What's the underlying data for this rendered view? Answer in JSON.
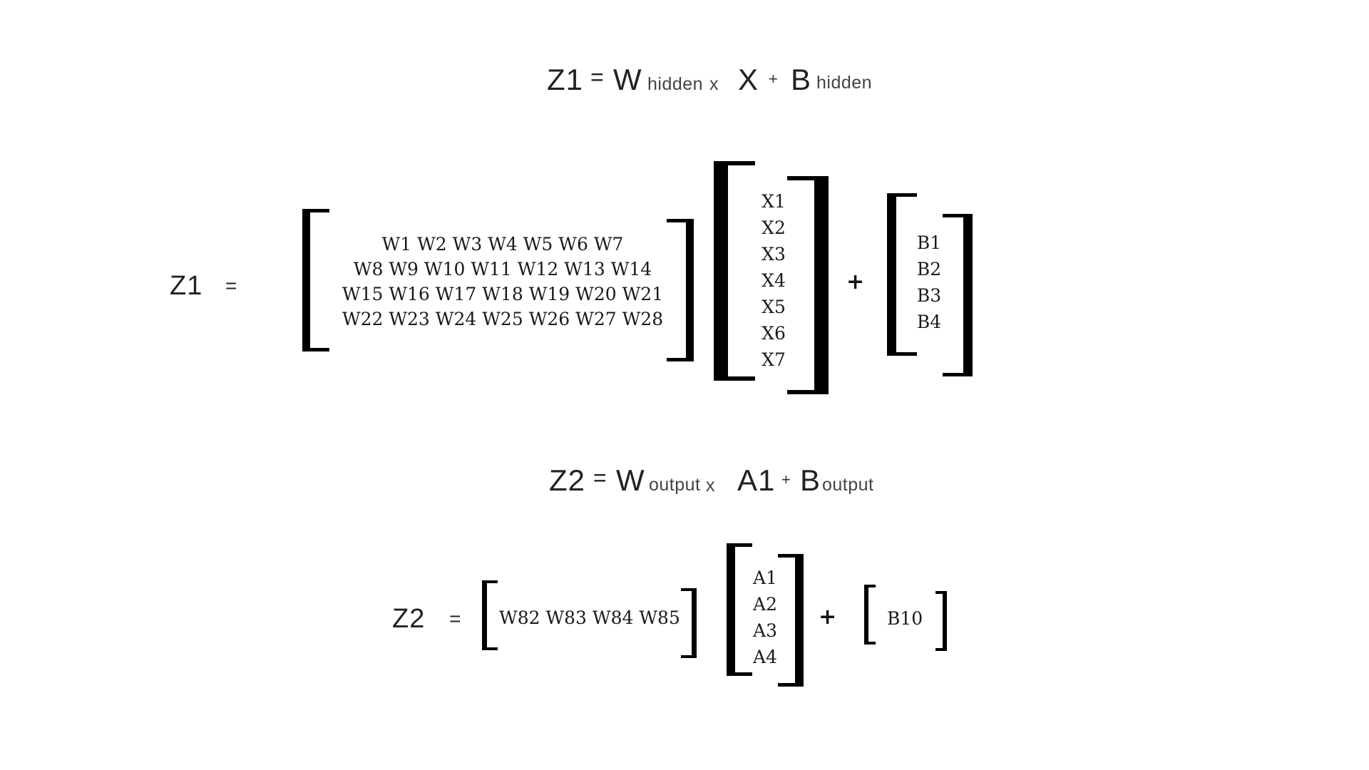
{
  "eq1_title": {
    "z": "Z1",
    "equals": "=",
    "w": "W",
    "w_sub": "hidden",
    "times": "x",
    "x": "X",
    "plus": "+",
    "b": "B",
    "b_sub": "hidden"
  },
  "eq1": {
    "lhs": "Z1",
    "equals": "=",
    "weights": [
      "W1 W2 W3 W4 W5 W6 W7",
      "W8 W9 W10 W11 W12 W13 W14",
      "W15 W16 W17 W18 W19 W20 W21",
      "W22 W23 W24 W25 W26 W27 W28"
    ],
    "inputs": [
      "X1",
      "X2",
      "X3",
      "X4",
      "X5",
      "X6",
      "X7"
    ],
    "plus": "+",
    "biases": [
      "B1",
      "B2",
      "B3",
      "B4"
    ]
  },
  "eq2_title": {
    "z": "Z2",
    "equals": "=",
    "w": "W",
    "w_sub": "output",
    "times": "x",
    "a": "A1",
    "plus": "+",
    "b": "B",
    "b_sub": "output"
  },
  "eq2": {
    "lhs": "Z2",
    "equals": "=",
    "weights": "W82 W83 W84 W85",
    "activations": [
      "A1",
      "A2",
      "A3",
      "A4"
    ],
    "plus": "+",
    "bias": "B10"
  }
}
